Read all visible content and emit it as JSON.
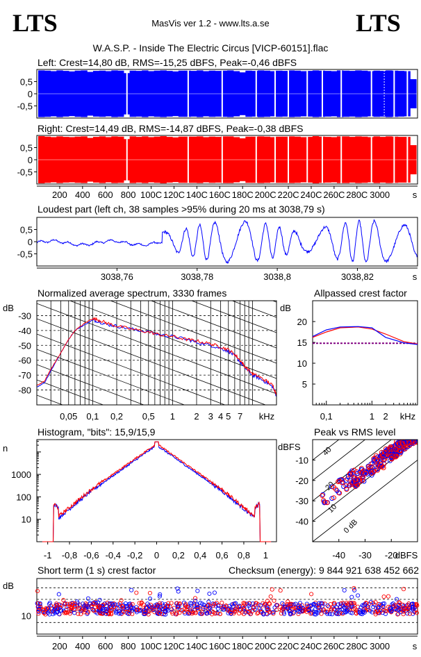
{
  "header": {
    "logo_left": "LTS",
    "logo_right": "LTS",
    "app": "MasVis ver 1.2 - www.lts.a.se",
    "file": "W.A.S.P. - Inside The Electric Circus [VICP-60151].flac"
  },
  "colors": {
    "left": "#0000ff",
    "right": "#ff0000",
    "grid": "#000000",
    "bg": "#ffffff"
  },
  "chart_data": [
    {
      "type": "area",
      "id": "left-waveform",
      "title": "Left: Crest=14,80 dB, RMS=-15,25 dBFS, Peak=-0,46 dBFS",
      "ylim": [
        -1,
        1
      ],
      "yticks": [
        "0,5",
        "0",
        "-0,5"
      ],
      "envelope": [
        0.96,
        0.95,
        0.93,
        0.96,
        0.94,
        0.92,
        0.95,
        0.96,
        0.9,
        0.94,
        0.95,
        0.93,
        0.96,
        0.95,
        0.85,
        0.95,
        0.94,
        0.96,
        0.93,
        0.95,
        0.96,
        0.94,
        0.92,
        0.95,
        0.95,
        0.94,
        0.96,
        0.93,
        0.95,
        0.94,
        0.95,
        0.96,
        0.93,
        0.88,
        0.95,
        0.94,
        0.96,
        0.95,
        0.93,
        0.95,
        0.94,
        0.96,
        0.95,
        0.93,
        0.94,
        0.96,
        0.95,
        0.94,
        0.93,
        0.96,
        0.95,
        0.94,
        0.96,
        0.95,
        0.93,
        0.95,
        0.94,
        0.96,
        0.95,
        0.94,
        0.93,
        0.6
      ]
    },
    {
      "type": "area",
      "id": "right-waveform",
      "title": "Right: Crest=14,49 dB, RMS=-14,87 dBFS, Peak=-0,38 dBFS",
      "ylim": [
        -1,
        1
      ],
      "yticks": [
        "0,5",
        "0",
        "-0,5"
      ],
      "x_ticks": [
        "200",
        "400",
        "600",
        "800",
        "1000",
        "1200",
        "1400",
        "1600",
        "1800",
        "2000",
        "2200",
        "2400",
        "2600",
        "2800",
        "3000"
      ],
      "x_tick_labels": [
        "200",
        "400",
        "600",
        "800",
        "100C",
        "120C",
        "140C",
        "160C",
        "180C",
        "200C",
        "220C",
        "240C",
        "260C",
        "280C",
        "3000"
      ],
      "xunit": "s",
      "xlim": [
        0,
        3330
      ]
    },
    {
      "type": "line",
      "id": "loudest-part",
      "title": "Loudest part (left  ch, 38 samples >95% during 20 ms at 3038,79 s)",
      "ylim": [
        -1,
        1
      ],
      "yticks": [
        "0,5",
        "0",
        "-0,5"
      ],
      "x_ticks": [
        "3038,76",
        "3038,78",
        "3038,8",
        "3038,82"
      ],
      "xunit": "s",
      "xlim": [
        3038.74,
        3038.835
      ]
    },
    {
      "type": "line",
      "id": "spectrum",
      "title": "Normalized average spectrum, 3330 frames",
      "ylabel": "dB",
      "yticks": [
        -30,
        -40,
        -50,
        -60,
        -70,
        -80
      ],
      "ylim": [
        -90,
        -20
      ],
      "xunit": "kHz",
      "xticks": [
        "0,05",
        "0,1",
        "0,2",
        "0,5",
        "1",
        "2",
        "3",
        "4",
        "5",
        "7"
      ],
      "xlim": [
        0.02,
        20
      ],
      "x": [
        0.02,
        0.025,
        0.03,
        0.04,
        0.05,
        0.06,
        0.08,
        0.1,
        0.12,
        0.15,
        0.2,
        0.3,
        0.5,
        0.7,
        1,
        1.5,
        2,
        3,
        4,
        5,
        6,
        7,
        8,
        10,
        12,
        15,
        18,
        20
      ],
      "series": [
        {
          "color": "red",
          "values": [
            -77,
            -74,
            -66,
            -55,
            -46,
            -40,
            -35,
            -32,
            -33,
            -35,
            -37,
            -39,
            -41,
            -43,
            -44,
            -46,
            -47,
            -49,
            -51,
            -53,
            -56,
            -60,
            -64,
            -69,
            -71,
            -74,
            -77,
            -83
          ]
        },
        {
          "color": "blue",
          "values": [
            -78,
            -75,
            -67,
            -55,
            -46,
            -40,
            -36,
            -33,
            -34,
            -36,
            -37,
            -39,
            -41,
            -43,
            -44,
            -46,
            -48,
            -50,
            -52,
            -54,
            -57,
            -61,
            -65,
            -70,
            -72,
            -75,
            -78,
            -84
          ]
        }
      ]
    },
    {
      "type": "line",
      "id": "allpassed-crest",
      "title": "Allpassed crest factor",
      "ylabel": "dB",
      "yticks": [
        20,
        15,
        10,
        5
      ],
      "ylim": [
        0,
        25
      ],
      "xunit": "kHz",
      "xticks": [
        "0,1",
        "1",
        "2"
      ],
      "xlim": [
        0.05,
        10
      ],
      "x": [
        0.05,
        0.1,
        0.2,
        0.5,
        1,
        2,
        5,
        10
      ],
      "series": [
        {
          "color": "red",
          "values": [
            16.2,
            17.5,
            18.5,
            18.7,
            18.2,
            17,
            15.2,
            14.6
          ]
        },
        {
          "color": "blue",
          "values": [
            16.4,
            18,
            18.7,
            18.8,
            18.5,
            16.2,
            14.9,
            14.5
          ]
        }
      ],
      "reference": 14.8
    },
    {
      "type": "line",
      "id": "histogram",
      "title": "Histogram, \"bits\": 15,9/15,9",
      "ylabel": "n",
      "yscale": "log",
      "yticks": [
        "1000",
        "100",
        "10"
      ],
      "xlim": [
        -1.1,
        1.1
      ],
      "xticks": [
        "-1",
        "-0,8",
        "-0,6",
        "-0,4",
        "-0,2",
        "0",
        "0,2",
        "0,4",
        "0,6",
        "0,8",
        "1"
      ]
    },
    {
      "type": "scatter",
      "id": "peak-vs-rms",
      "title": "Peak vs RMS level",
      "ylabel": "dBFS",
      "xlabel": "dBFS",
      "yticks": [
        -10,
        -20,
        -30,
        -40
      ],
      "xticks": [
        -40,
        -30,
        -20
      ],
      "xlim": [
        -50,
        -10
      ],
      "ylim": [
        -50,
        0
      ],
      "diag_labels": [
        "40",
        "20",
        "10",
        "0 dB"
      ]
    },
    {
      "type": "scatter",
      "id": "short-term-crest",
      "title": "Short term (1 s) crest factor",
      "ylabel": "dB",
      "yticks": [
        "10"
      ],
      "xunit": "s",
      "xlim": [
        0,
        3330
      ],
      "x_tick_labels": [
        "200",
        "400",
        "600",
        "800",
        "100C",
        "120C",
        "140C",
        "160C",
        "180C",
        "200C",
        "220C",
        "240C",
        "260C",
        "280C",
        "3000"
      ]
    }
  ],
  "checksum": "Checksum (energy):  9 844 921 638 452 662"
}
